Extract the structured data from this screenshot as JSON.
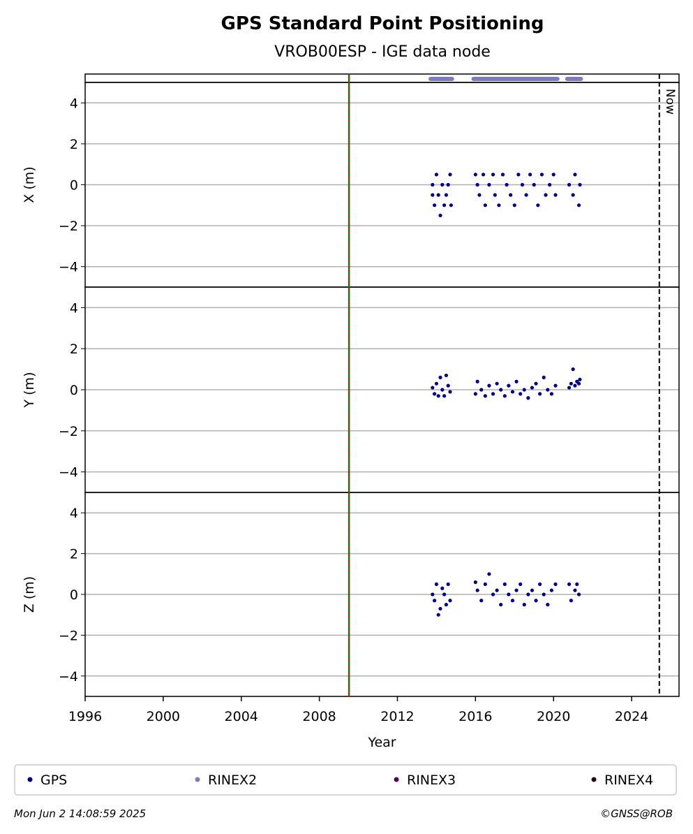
{
  "title": "GPS Standard Point Positioning",
  "subtitle": "VROB00ESP - IGE data node",
  "legend": [
    {
      "name": "GPS",
      "color": "#00008b"
    },
    {
      "name": "RINEX2",
      "color": "#7b7bbf"
    },
    {
      "name": "RINEX3",
      "color": "#5c005c"
    },
    {
      "name": "RINEX4",
      "color": "#2a0a1a"
    }
  ],
  "timestamp": "Mon Jun  2 14:08:59 2025",
  "copyright": "©GNSS@ROB",
  "vlines": [
    {
      "x": 2009.52,
      "colors": [
        "#008000",
        "#ff0000"
      ]
    },
    {
      "x": 2025.42,
      "label": "Now",
      "color": "#000000"
    }
  ],
  "chart_data": [
    {
      "type": "scatter",
      "ylabel": "X (m)",
      "xlim": [
        1996,
        2026.43
      ],
      "ylim": [
        -5,
        5
      ],
      "grid": true,
      "yticks": [
        {
          "value": -4,
          "label": "−4"
        },
        {
          "value": -2,
          "label": "−2"
        },
        0,
        2,
        4
      ],
      "availability": {
        "name": "RINEX2",
        "color": "#7b7bbf",
        "ranges": [
          [
            2013.7,
            2014.8
          ],
          [
            2015.9,
            2020.2
          ],
          [
            2020.7,
            2021.4
          ]
        ]
      },
      "series": [
        {
          "name": "GPS",
          "color": "#00008b",
          "x": [
            2013.8,
            2013.8,
            2013.9,
            2014.0,
            2014.1,
            2014.2,
            2014.3,
            2014.4,
            2014.5,
            2014.6,
            2014.7,
            2014.75,
            2016.0,
            2016.1,
            2016.2,
            2016.4,
            2016.5,
            2016.7,
            2016.9,
            2017.0,
            2017.2,
            2017.4,
            2017.6,
            2017.8,
            2018.0,
            2018.2,
            2018.4,
            2018.6,
            2018.8,
            2019.0,
            2019.2,
            2019.4,
            2019.6,
            2019.8,
            2020.0,
            2020.1,
            2020.8,
            2021.0,
            2021.1,
            2021.3,
            2021.35
          ],
          "values": [
            0,
            -0.5,
            -1,
            0.5,
            -0.5,
            -1.5,
            0,
            -1,
            -0.5,
            0,
            0.5,
            -1,
            0.5,
            0,
            -0.5,
            0.5,
            -1,
            0,
            0.5,
            -0.5,
            -1,
            0.5,
            0,
            -0.5,
            -1,
            0.5,
            0,
            -0.5,
            0.5,
            0,
            -1,
            0.5,
            -0.5,
            0,
            0.5,
            -0.5,
            0,
            -0.5,
            0.5,
            -1,
            0
          ]
        }
      ]
    },
    {
      "type": "scatter",
      "ylabel": "Y (m)",
      "xlim": [
        1996,
        2026.43
      ],
      "ylim": [
        -5,
        5
      ],
      "grid": true,
      "yticks": [
        {
          "value": -4,
          "label": "−4"
        },
        {
          "value": -2,
          "label": "−2"
        },
        0,
        2,
        4
      ],
      "series": [
        {
          "name": "GPS",
          "color": "#00008b",
          "x": [
            2013.8,
            2013.9,
            2014.0,
            2014.1,
            2014.2,
            2014.3,
            2014.4,
            2014.5,
            2014.6,
            2014.7,
            2016.0,
            2016.1,
            2016.3,
            2016.5,
            2016.7,
            2016.9,
            2017.1,
            2017.3,
            2017.5,
            2017.7,
            2017.9,
            2018.1,
            2018.3,
            2018.5,
            2018.7,
            2018.9,
            2019.1,
            2019.3,
            2019.5,
            2019.7,
            2019.9,
            2020.1,
            2020.8,
            2020.9,
            2021.0,
            2021.1,
            2021.2,
            2021.3,
            2021.35
          ],
          "values": [
            0.1,
            -0.2,
            0.3,
            -0.3,
            0.6,
            0,
            -0.3,
            0.7,
            0.2,
            -0.1,
            -0.2,
            0.4,
            0,
            -0.3,
            0.2,
            -0.2,
            0.3,
            0,
            -0.3,
            0.2,
            -0.1,
            0.4,
            -0.2,
            0,
            -0.4,
            0.1,
            0.3,
            -0.2,
            0.6,
            0,
            -0.2,
            0.2,
            0.1,
            0.3,
            1.0,
            0.2,
            0.4,
            0.3,
            0.5
          ]
        }
      ]
    },
    {
      "type": "scatter",
      "ylabel": "Z (m)",
      "xlabel": "Year",
      "xlim": [
        1996,
        2026.43
      ],
      "ylim": [
        -5,
        5
      ],
      "grid": true,
      "xticks": [
        1996,
        2000,
        2004,
        2008,
        2012,
        2016,
        2020,
        2024
      ],
      "yticks": [
        {
          "value": -4,
          "label": "−4"
        },
        {
          "value": -2,
          "label": "−2"
        },
        0,
        2,
        4
      ],
      "series": [
        {
          "name": "GPS",
          "color": "#00008b",
          "x": [
            2013.8,
            2013.9,
            2014.0,
            2014.1,
            2014.2,
            2014.3,
            2014.4,
            2014.5,
            2014.6,
            2014.7,
            2016.0,
            2016.1,
            2016.3,
            2016.5,
            2016.7,
            2016.9,
            2017.1,
            2017.3,
            2017.5,
            2017.7,
            2017.9,
            2018.1,
            2018.3,
            2018.5,
            2018.7,
            2018.9,
            2019.1,
            2019.3,
            2019.5,
            2019.7,
            2019.9,
            2020.1,
            2020.8,
            2020.9,
            2021.1,
            2021.2,
            2021.3
          ],
          "values": [
            0,
            -0.3,
            0.5,
            -1.0,
            -0.7,
            0.3,
            0,
            -0.5,
            0.5,
            -0.3,
            0.6,
            0.2,
            -0.3,
            0.5,
            1.0,
            0,
            0.2,
            -0.5,
            0.5,
            0,
            -0.3,
            0.2,
            0.5,
            -0.5,
            0,
            0.2,
            -0.3,
            0.5,
            0,
            -0.5,
            0.2,
            0.5,
            0.5,
            -0.3,
            0.2,
            0.5,
            0
          ]
        }
      ]
    }
  ]
}
